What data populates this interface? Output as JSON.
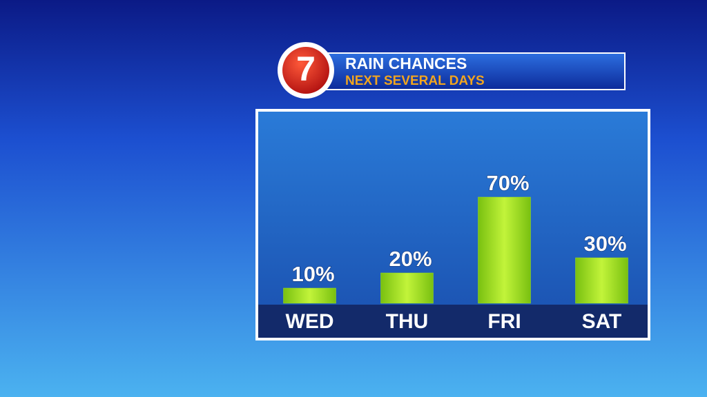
{
  "logo": "7",
  "chart_data": {
    "type": "bar",
    "title": "RAIN CHANCES",
    "subtitle": "NEXT SEVERAL DAYS",
    "categories": [
      "WED",
      "THU",
      "FRI",
      "SAT"
    ],
    "values": [
      10,
      20,
      70,
      30
    ],
    "value_labels": [
      "10%",
      "20%",
      "70%",
      "30%"
    ],
    "color": "#9be21e",
    "ylim": [
      0,
      100
    ]
  }
}
